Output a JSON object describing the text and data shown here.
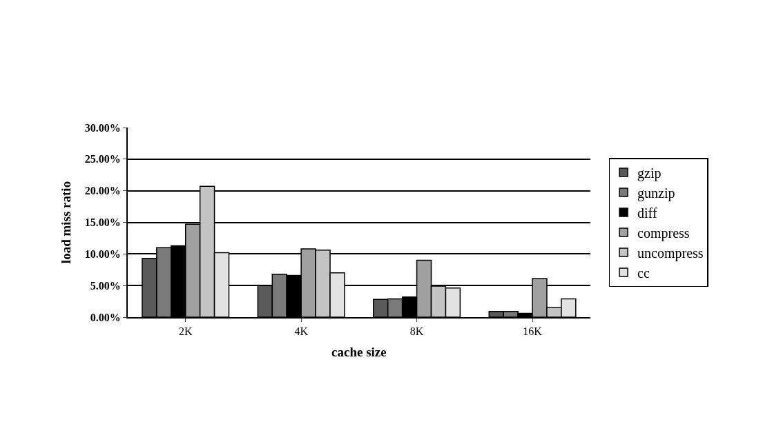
{
  "chart_data": {
    "type": "bar",
    "xlabel": "cache size",
    "ylabel": "load miss ratio",
    "categories": [
      "2K",
      "4K",
      "8K",
      "16K"
    ],
    "series": [
      {
        "name": "gzip",
        "color": "#595959",
        "values": [
          9.3,
          5.0,
          2.8,
          0.9
        ]
      },
      {
        "name": "gunzip",
        "color": "#7a7a7a",
        "values": [
          11.0,
          6.8,
          2.9,
          0.9
        ]
      },
      {
        "name": "diff",
        "color": "#000000",
        "values": [
          11.3,
          6.6,
          3.2,
          0.6
        ]
      },
      {
        "name": "compress",
        "color": "#a0a0a0",
        "values": [
          14.7,
          10.8,
          9.0,
          6.1
        ]
      },
      {
        "name": "uncompress",
        "color": "#c4c4c4",
        "values": [
          20.7,
          10.6,
          4.9,
          1.5
        ]
      },
      {
        "name": "cc",
        "color": "#e2e2e2",
        "values": [
          10.2,
          7.0,
          4.6,
          2.9
        ]
      }
    ],
    "ylim": [
      0,
      30
    ],
    "yticks": [
      {
        "value": 0,
        "label": "0.00%"
      },
      {
        "value": 5,
        "label": "5.00%"
      },
      {
        "value": 10,
        "label": "10.00%"
      },
      {
        "value": 15,
        "label": "15.00%"
      },
      {
        "value": 20,
        "label": "20.00%"
      },
      {
        "value": 25,
        "label": "25.00%"
      },
      {
        "value": 30,
        "label": "30.00%"
      }
    ],
    "grid": "y",
    "legend": "right"
  }
}
